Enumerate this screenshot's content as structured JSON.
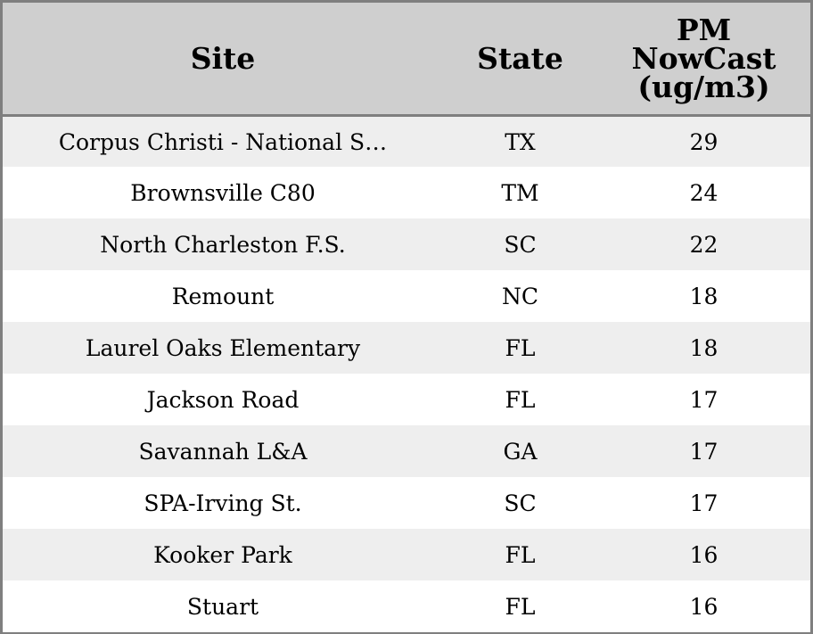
{
  "chart_data": {
    "type": "table",
    "columns": [
      "Site",
      "State",
      "PM NowCast (ug/m3)"
    ],
    "header_lines": [
      [
        "Site"
      ],
      [
        "State"
      ],
      [
        "PM",
        "NowCast",
        "(ug/m3)"
      ]
    ],
    "rows": [
      [
        "Corpus Christi - National S…",
        "TX",
        "29"
      ],
      [
        "Brownsville C80",
        "TM",
        "24"
      ],
      [
        "North Charleston F.S.",
        "SC",
        "22"
      ],
      [
        "Remount",
        "NC",
        "18"
      ],
      [
        "Laurel Oaks Elementary",
        "FL",
        "18"
      ],
      [
        "Jackson Road",
        "FL",
        "17"
      ],
      [
        "Savannah L&A",
        "GA",
        "17"
      ],
      [
        "SPA-Irving St.",
        "SC",
        "17"
      ],
      [
        "Kooker Park",
        "FL",
        "16"
      ],
      [
        "Stuart",
        "FL",
        "16"
      ]
    ],
    "colors": {
      "header_bg": "#cfcfcf",
      "row_alt_bg": "#eeeeee",
      "row_bg": "#ffffff",
      "border": "#7f7f7f"
    }
  }
}
